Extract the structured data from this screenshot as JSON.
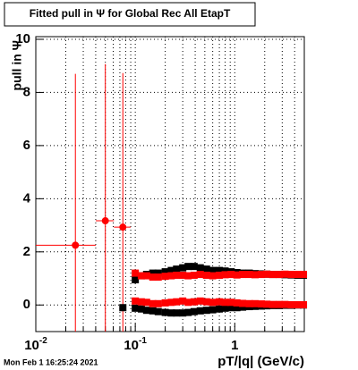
{
  "chart_data": {
    "type": "scatter",
    "title": "Fitted pull in  Ψ  for Global Rec All EtapT",
    "x_label": "pT/|q| (GeV/c)",
    "y_label": "pull in  Ψ",
    "timestamp": "Mon Feb  1 16:25:24 2021",
    "log_x": true,
    "grid": true,
    "xlim": [
      0.01,
      5
    ],
    "ylim": [
      -1,
      10.1
    ],
    "xticks": [
      {
        "value": 0.01,
        "label": "10",
        "exponent": "-2"
      },
      {
        "value": 0.1,
        "label": "10",
        "exponent": "-1"
      },
      1
    ],
    "xticks_minor": [
      0.02,
      0.03,
      0.04,
      0.05,
      0.06,
      0.07,
      0.08,
      0.09,
      0.2,
      0.3,
      0.4,
      0.5,
      0.6,
      0.7,
      0.8,
      0.9,
      2,
      3,
      4,
      5
    ],
    "yticks": [
      0,
      2,
      4,
      6,
      8,
      10
    ],
    "series": [
      {
        "color": "#ff0000",
        "marker": "circle",
        "x": [
          0.025,
          0.05,
          0.075
        ],
        "values": [
          2.25,
          3.17,
          2.93
        ],
        "yerr": [
          6.45,
          5.9,
          5.8
        ],
        "xerr_low": [
          0.01,
          0.04,
          0.061
        ],
        "xerr_high": [
          0.04,
          0.061,
          0.09
        ]
      },
      {
        "color": "#000000",
        "marker": "square",
        "x": [
          0.1,
          0.115,
          0.13,
          0.15,
          0.17,
          0.2,
          0.23,
          0.26,
          0.3,
          0.34,
          0.39,
          0.45,
          0.52,
          0.6,
          0.7,
          0.8,
          0.92,
          1.05,
          1.2,
          1.4,
          1.6,
          1.85,
          2.1,
          2.4,
          2.8,
          3.2,
          3.7,
          4.3,
          4.9
        ],
        "values": [
          0.95,
          1.1,
          1.15,
          1.2,
          1.2,
          1.25,
          1.3,
          1.35,
          1.4,
          1.45,
          1.45,
          1.4,
          1.35,
          1.3,
          1.3,
          1.28,
          1.25,
          1.22,
          1.2,
          1.2,
          1.18,
          1.17,
          1.16,
          1.15,
          1.15,
          1.14,
          1.13,
          1.12,
          1.12
        ]
      },
      {
        "color": "#000000",
        "marker": "square",
        "x": [
          0.075,
          0.1,
          0.115,
          0.13,
          0.15,
          0.17,
          0.2,
          0.23,
          0.26,
          0.3,
          0.34,
          0.39,
          0.45,
          0.52,
          0.6,
          0.7,
          0.8,
          0.92,
          1.05,
          1.2,
          1.4,
          1.6,
          1.85,
          2.1,
          2.4,
          2.8,
          3.2,
          3.7,
          4.3,
          4.9
        ],
        "values": [
          -0.1,
          -0.12,
          -0.15,
          -0.2,
          -0.22,
          -0.25,
          -0.28,
          -0.3,
          -0.3,
          -0.3,
          -0.28,
          -0.25,
          -0.22,
          -0.2,
          -0.18,
          -0.15,
          -0.12,
          -0.1,
          -0.1,
          -0.08,
          -0.06,
          -0.05,
          -0.04,
          -0.03,
          -0.02,
          -0.02,
          -0.01,
          -0.01,
          0,
          0
        ]
      },
      {
        "color": "#ff0000",
        "marker": "square",
        "x": [
          0.1,
          0.115,
          0.13,
          0.15,
          0.17,
          0.2,
          0.23,
          0.26,
          0.3,
          0.34,
          0.39,
          0.45,
          0.52,
          0.6,
          0.7,
          0.8,
          0.92,
          1.05,
          1.2,
          1.4,
          1.6,
          1.85,
          2.1,
          2.4,
          2.8,
          3.2,
          3.7,
          4.3,
          4.9
        ],
        "values": [
          1.2,
          1.1,
          1.1,
          1.05,
          1.05,
          1.08,
          1.1,
          1.12,
          1.12,
          1.1,
          1.12,
          1.15,
          1.12,
          1.1,
          1.12,
          1.14,
          1.15,
          1.13,
          1.15,
          1.15,
          1.14,
          1.15,
          1.16,
          1.15,
          1.15,
          1.16,
          1.15,
          1.15,
          1.15
        ]
      },
      {
        "color": "#ff0000",
        "marker": "square",
        "x": [
          0.1,
          0.115,
          0.13,
          0.15,
          0.17,
          0.2,
          0.23,
          0.26,
          0.3,
          0.34,
          0.39,
          0.45,
          0.52,
          0.6,
          0.7,
          0.8,
          0.92,
          1.05,
          1.2,
          1.4,
          1.6,
          1.85,
          2.1,
          2.4,
          2.8,
          3.2,
          3.7,
          4.3,
          4.9
        ],
        "values": [
          0.15,
          0.12,
          0.1,
          0.05,
          0.05,
          0.08,
          0.1,
          0.12,
          0.15,
          0.1,
          0.12,
          0.15,
          0.12,
          0.1,
          0.12,
          0.1,
          0.1,
          0.08,
          0.06,
          0.05,
          0.05,
          0.04,
          0.03,
          0.02,
          0.02,
          0.02,
          0.01,
          0.01,
          0.01
        ]
      }
    ]
  }
}
